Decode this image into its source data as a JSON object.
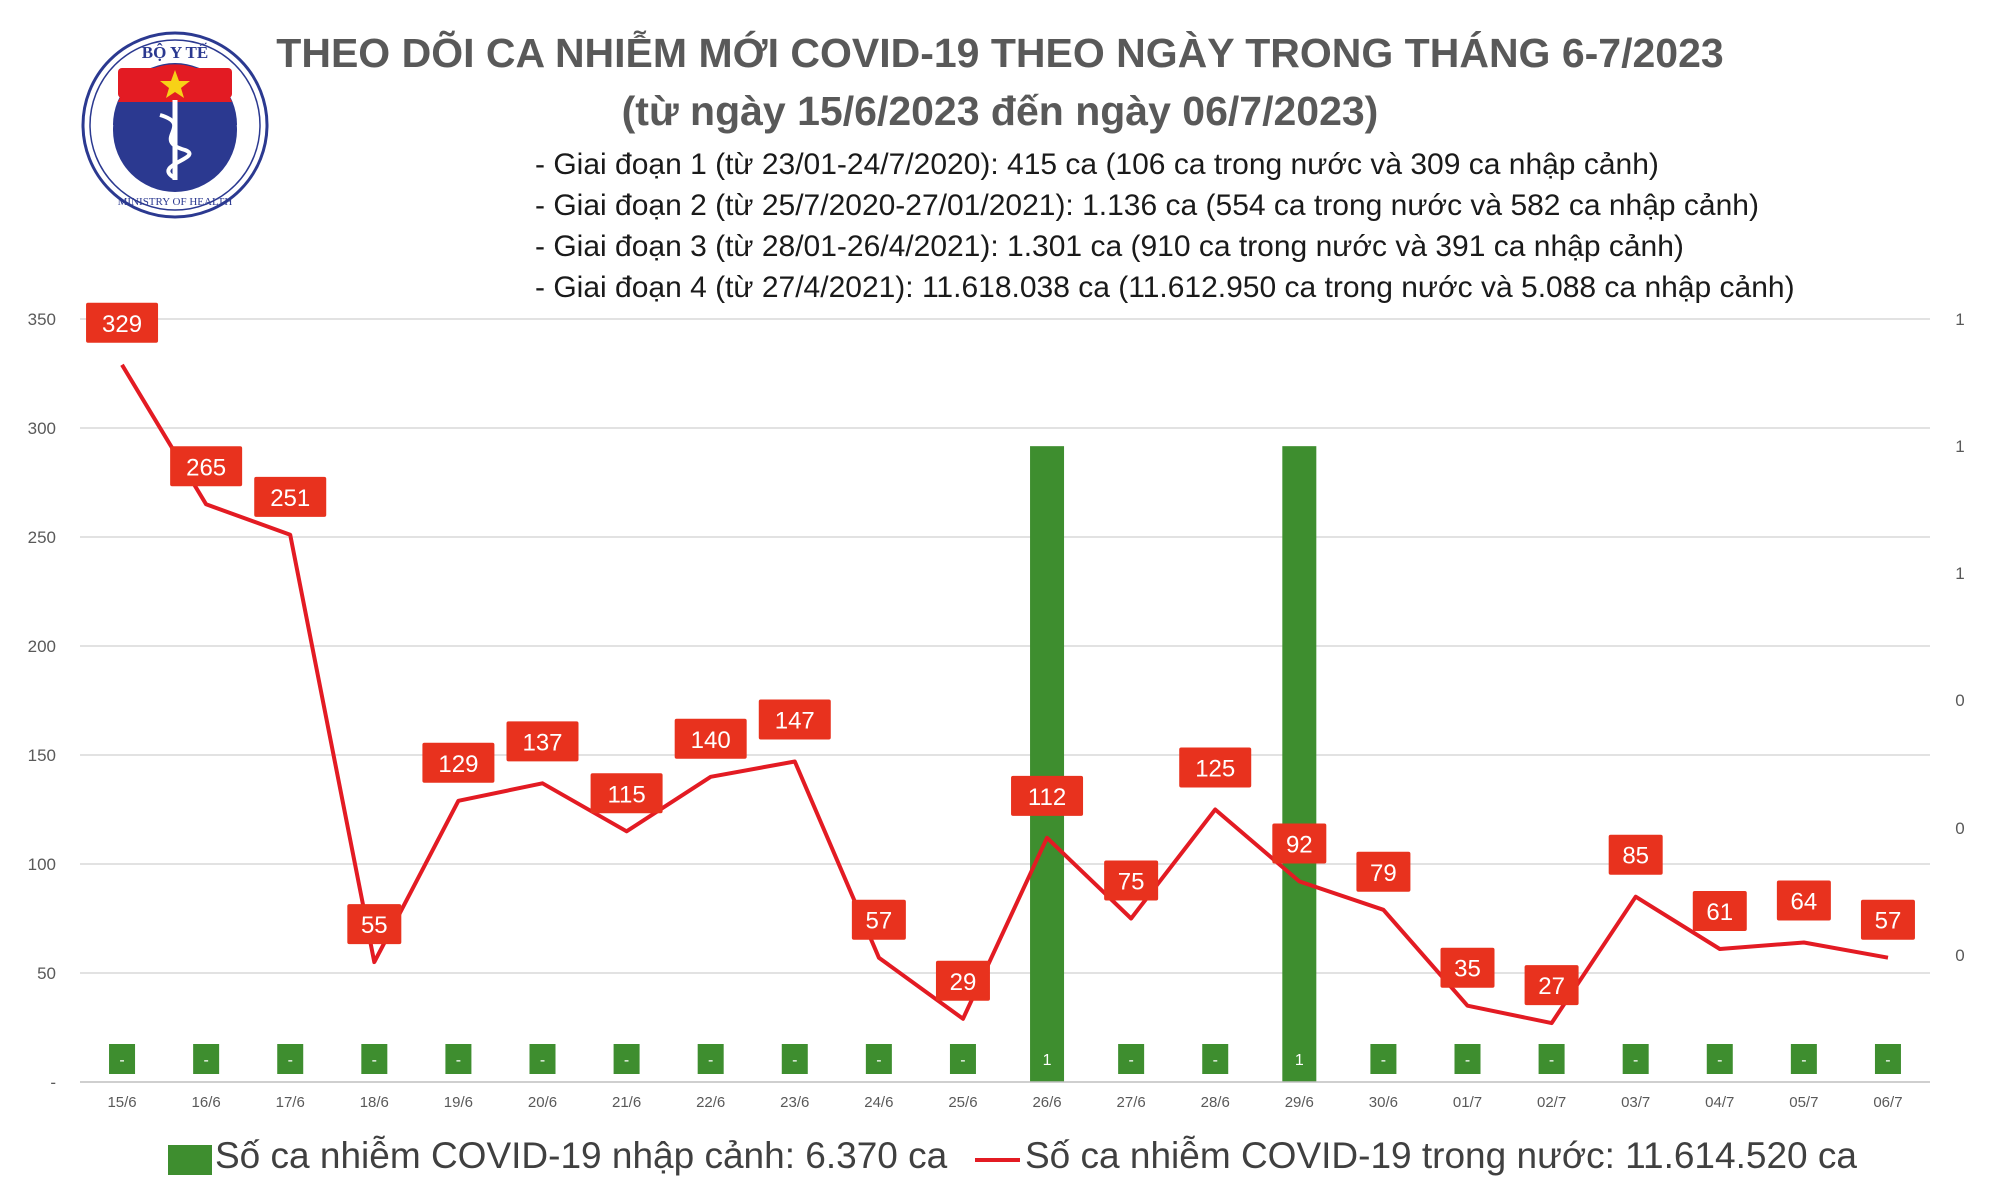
{
  "logo": {
    "top_text": "BỘ Y TẾ",
    "bottom_text": "MINISTRY OF HEALTH",
    "colors": {
      "ring": "#2b3990",
      "red": "#e31b23",
      "star": "#f7d117"
    }
  },
  "title_line1": "THEO DÕI CA NHIỄM MỚI COVID-19 THEO NGÀY TRONG THÁNG 6-7/2023",
  "title_line2": "(từ ngày 15/6/2023 đến ngày 06/7/2023)",
  "notes": [
    "- Giai đoạn 1 (từ 23/01-24/7/2020): 415 ca (106 ca trong nước và 309 ca nhập cảnh)",
    "- Giai đoạn 2 (từ 25/7/2020-27/01/2021): 1.136 ca (554 ca trong nước và 582 ca nhập cảnh)",
    "- Giai đoạn 3 (từ 28/01-26/4/2021): 1.301 ca (910 ca trong nước và 391 ca nhập cảnh)",
    "- Giai đoạn 4 (từ 27/4/2021): 11.618.038 ca (11.612.950 ca trong nước và 5.088 ca nhập cảnh)"
  ],
  "chart_data": {
    "type": "bar",
    "categories": [
      "15/6",
      "16/6",
      "17/6",
      "18/6",
      "19/6",
      "20/6",
      "21/6",
      "22/6",
      "23/6",
      "24/6",
      "25/6",
      "26/6",
      "27/6",
      "28/6",
      "29/6",
      "30/6",
      "01/7",
      "02/7",
      "03/7",
      "04/7",
      "05/7",
      "06/7"
    ],
    "series": [
      {
        "name": "Số ca nhiễm COVID-19 nhập cảnh: 6.370 ca",
        "type": "bar",
        "axis": "right",
        "values": [
          0,
          0,
          0,
          0,
          0,
          0,
          0,
          0,
          0,
          0,
          0,
          1,
          0,
          0,
          1,
          0,
          0,
          0,
          0,
          0,
          0,
          0
        ],
        "labels": [
          "-",
          "-",
          "-",
          "-",
          "-",
          "-",
          "-",
          "-",
          "-",
          "-",
          "-",
          "1",
          "-",
          "-",
          "1",
          "-",
          "-",
          "-",
          "-",
          "-",
          "-",
          "-"
        ],
        "color": "#3e8e2f"
      },
      {
        "name": "Số ca nhiễm COVID-19 trong nước: 11.614.520 ca",
        "type": "line",
        "axis": "left",
        "values": [
          329,
          265,
          251,
          55,
          129,
          137,
          115,
          140,
          147,
          57,
          29,
          112,
          75,
          125,
          92,
          79,
          35,
          27,
          85,
          61,
          64,
          57
        ],
        "color": "#e31b23"
      }
    ],
    "y_left": {
      "ticks": [
        "-",
        "50",
        "100",
        "150",
        "200",
        "250",
        "300",
        "350"
      ],
      "range": [
        0,
        350
      ]
    },
    "y_right": {
      "ticks": [
        "0",
        "0",
        "0",
        "1",
        "1",
        "1",
        "1"
      ],
      "range": [
        0,
        1.2
      ]
    },
    "grid": true,
    "legend_position": "bottom"
  }
}
